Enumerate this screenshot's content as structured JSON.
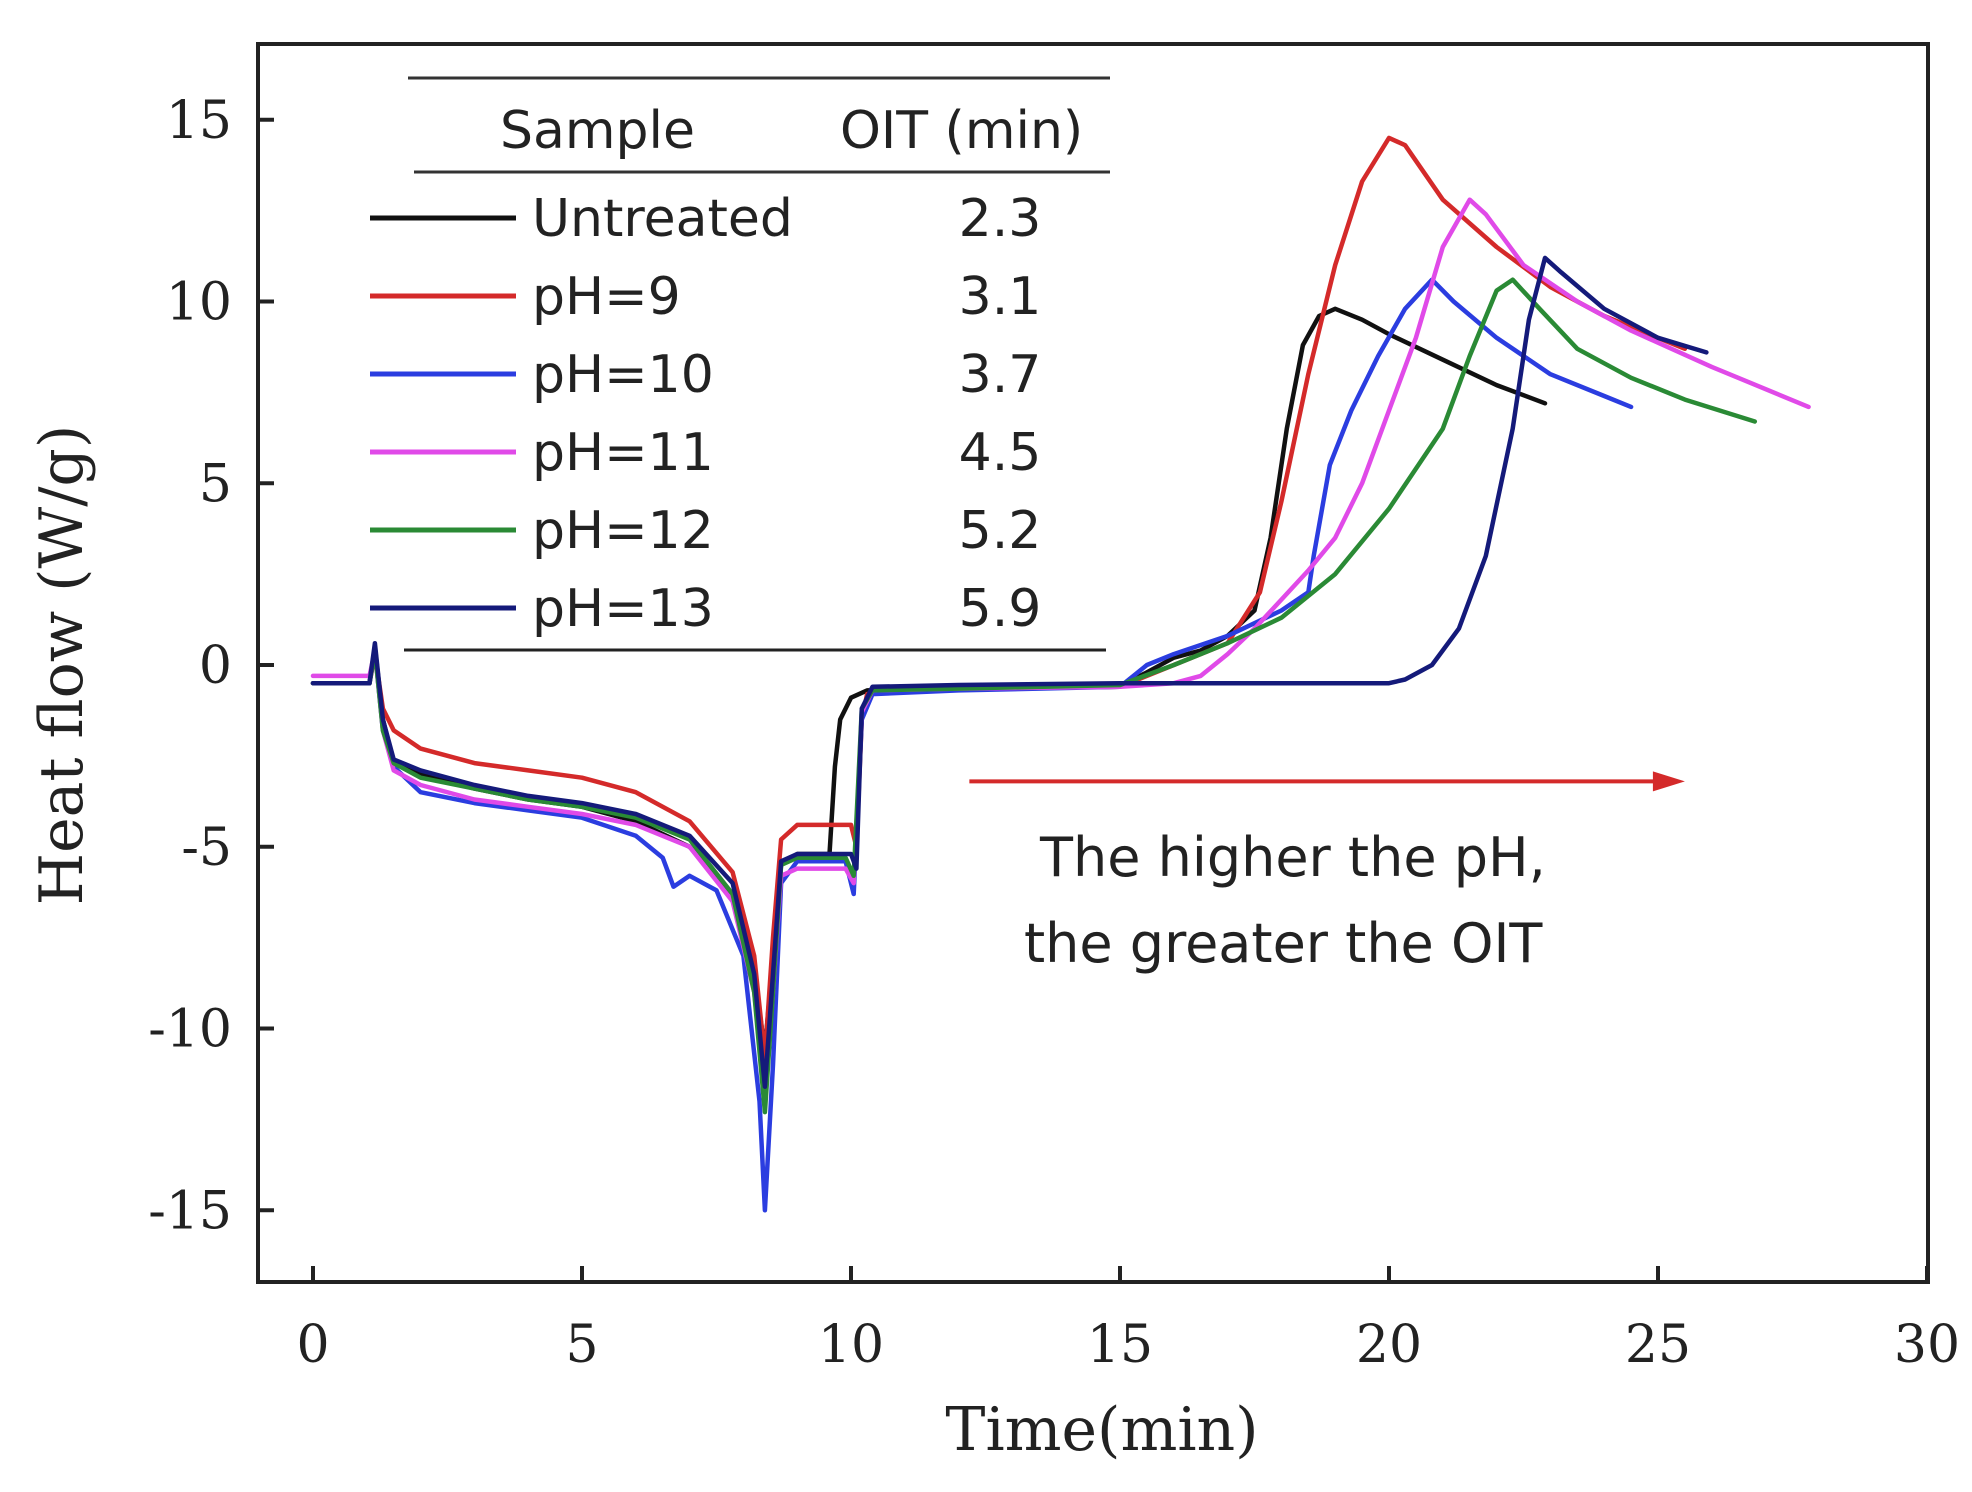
{
  "chart_data": {
    "type": "line",
    "xlabel": "Time(min)",
    "ylabel": "Heat flow (W/g)",
    "xlim": [
      0,
      30
    ],
    "ylim": [
      -17,
      17
    ],
    "x_ticks": [
      "0",
      "5",
      "10",
      "15",
      "20",
      "25",
      "30"
    ],
    "y_ticks": [
      "-15",
      "-10",
      "-5",
      "0",
      "5",
      "10",
      "15"
    ],
    "grid": false,
    "legend": {
      "position": "top-left",
      "header_sample": "Sample",
      "header_oit": "OIT (min)",
      "entries": [
        {
          "label": "Untreated",
          "oit": "2.3",
          "color": "#111111"
        },
        {
          "label": "pH=9",
          "oit": "3.1",
          "color": "#d42a2a"
        },
        {
          "label": "pH=10",
          "oit": "3.7",
          "color": "#2b3de0"
        },
        {
          "label": "pH=11",
          "oit": "4.5",
          "color": "#e04ae8"
        },
        {
          "label": "pH=12",
          "oit": "5.2",
          "color": "#2a8a35"
        },
        {
          "label": "pH=13",
          "oit": "5.9",
          "color": "#141a7a"
        }
      ]
    },
    "annotation": {
      "line1": "The higher the pH,",
      "line2": "the greater the OIT",
      "arrow_from_x": 12.2,
      "arrow_to_x": 25.5,
      "arrow_y": -3.2,
      "arrow_color": "#d42a2a"
    },
    "series": [
      {
        "name": "Untreated",
        "color": "#111111",
        "points": [
          [
            0,
            -0.5
          ],
          [
            1.05,
            -0.5
          ],
          [
            1.15,
            0.5
          ],
          [
            1.3,
            -1.5
          ],
          [
            1.5,
            -2.7
          ],
          [
            2,
            -3.0
          ],
          [
            3,
            -3.4
          ],
          [
            4,
            -3.7
          ],
          [
            5,
            -3.9
          ],
          [
            6,
            -4.3
          ],
          [
            7,
            -5.0
          ],
          [
            7.8,
            -6.3
          ],
          [
            8.2,
            -8.5
          ],
          [
            8.4,
            -10.6
          ],
          [
            8.55,
            -8.0
          ],
          [
            8.7,
            -5.5
          ],
          [
            9.0,
            -5.2
          ],
          [
            9.6,
            -5.2
          ],
          [
            9.7,
            -2.8
          ],
          [
            9.8,
            -1.5
          ],
          [
            10.0,
            -0.9
          ],
          [
            10.3,
            -0.7
          ],
          [
            12,
            -0.65
          ],
          [
            15,
            -0.6
          ],
          [
            15.5,
            -0.2
          ],
          [
            16,
            0.2
          ],
          [
            16.5,
            0.4
          ],
          [
            17,
            0.8
          ],
          [
            17.5,
            1.5
          ],
          [
            17.8,
            3.5
          ],
          [
            18.1,
            6.5
          ],
          [
            18.4,
            8.8
          ],
          [
            18.7,
            9.6
          ],
          [
            19.0,
            9.8
          ],
          [
            19.5,
            9.5
          ],
          [
            20,
            9.1
          ],
          [
            21,
            8.4
          ],
          [
            22,
            7.7
          ],
          [
            22.9,
            7.2
          ]
        ]
      },
      {
        "name": "pH=9",
        "color": "#d42a2a",
        "points": [
          [
            0,
            -0.5
          ],
          [
            1.05,
            -0.5
          ],
          [
            1.15,
            0.3
          ],
          [
            1.3,
            -1.2
          ],
          [
            1.5,
            -1.8
          ],
          [
            2,
            -2.3
          ],
          [
            3,
            -2.7
          ],
          [
            4,
            -2.9
          ],
          [
            5,
            -3.1
          ],
          [
            6,
            -3.5
          ],
          [
            7,
            -4.3
          ],
          [
            7.8,
            -5.7
          ],
          [
            8.2,
            -8.0
          ],
          [
            8.4,
            -10.8
          ],
          [
            8.55,
            -7.5
          ],
          [
            8.7,
            -4.8
          ],
          [
            9.0,
            -4.4
          ],
          [
            10.0,
            -4.4
          ],
          [
            10.1,
            -5.0
          ],
          [
            10.2,
            -1.5
          ],
          [
            10.3,
            -0.8
          ],
          [
            10.6,
            -0.7
          ],
          [
            12,
            -0.65
          ],
          [
            15,
            -0.6
          ],
          [
            16,
            0
          ],
          [
            17,
            0.6
          ],
          [
            17.6,
            2.0
          ],
          [
            18.0,
            4.5
          ],
          [
            18.5,
            8.0
          ],
          [
            19.0,
            11.0
          ],
          [
            19.5,
            13.3
          ],
          [
            20.0,
            14.5
          ],
          [
            20.3,
            14.3
          ],
          [
            21,
            12.8
          ],
          [
            22,
            11.5
          ],
          [
            23,
            10.4
          ],
          [
            24,
            9.6
          ],
          [
            25.5,
            8.7
          ]
        ]
      },
      {
        "name": "pH=10",
        "color": "#2b3de0",
        "points": [
          [
            0,
            -0.5
          ],
          [
            1.05,
            -0.5
          ],
          [
            1.15,
            0.4
          ],
          [
            1.3,
            -1.8
          ],
          [
            1.5,
            -2.8
          ],
          [
            2,
            -3.5
          ],
          [
            3,
            -3.8
          ],
          [
            4,
            -4.0
          ],
          [
            5,
            -4.2
          ],
          [
            6,
            -4.7
          ],
          [
            6.5,
            -5.3
          ],
          [
            6.7,
            -6.1
          ],
          [
            7.0,
            -5.8
          ],
          [
            7.5,
            -6.2
          ],
          [
            8.0,
            -8.0
          ],
          [
            8.3,
            -12.0
          ],
          [
            8.4,
            -15.0
          ],
          [
            8.55,
            -11.0
          ],
          [
            8.7,
            -6.0
          ],
          [
            9.0,
            -5.4
          ],
          [
            9.9,
            -5.4
          ],
          [
            10.05,
            -6.3
          ],
          [
            10.2,
            -1.5
          ],
          [
            10.4,
            -0.8
          ],
          [
            12,
            -0.7
          ],
          [
            15,
            -0.6
          ],
          [
            15.5,
            0.0
          ],
          [
            16,
            0.3
          ],
          [
            17,
            0.8
          ],
          [
            18,
            1.5
          ],
          [
            18.5,
            2.0
          ],
          [
            18.6,
            3.0
          ],
          [
            18.9,
            5.5
          ],
          [
            19.3,
            7.0
          ],
          [
            19.8,
            8.5
          ],
          [
            20.3,
            9.8
          ],
          [
            20.8,
            10.6
          ],
          [
            21.2,
            10.0
          ],
          [
            22,
            9.0
          ],
          [
            23,
            8.0
          ],
          [
            24,
            7.4
          ],
          [
            24.5,
            7.1
          ]
        ]
      },
      {
        "name": "pH=11",
        "color": "#e04ae8",
        "points": [
          [
            0,
            -0.3
          ],
          [
            1.05,
            -0.3
          ],
          [
            1.15,
            0.4
          ],
          [
            1.3,
            -1.8
          ],
          [
            1.5,
            -2.9
          ],
          [
            2,
            -3.3
          ],
          [
            3,
            -3.7
          ],
          [
            4,
            -3.9
          ],
          [
            5,
            -4.1
          ],
          [
            6,
            -4.4
          ],
          [
            7,
            -5.0
          ],
          [
            7.8,
            -6.5
          ],
          [
            8.2,
            -9.0
          ],
          [
            8.4,
            -11.8
          ],
          [
            8.55,
            -9.0
          ],
          [
            8.7,
            -5.8
          ],
          [
            9.0,
            -5.6
          ],
          [
            9.9,
            -5.6
          ],
          [
            10.05,
            -6.0
          ],
          [
            10.2,
            -1.3
          ],
          [
            10.4,
            -0.7
          ],
          [
            12,
            -0.65
          ],
          [
            15,
            -0.6
          ],
          [
            16,
            -0.5
          ],
          [
            16.5,
            -0.3
          ],
          [
            17.0,
            0.3
          ],
          [
            17.5,
            1.0
          ],
          [
            18,
            1.8
          ],
          [
            18.5,
            2.6
          ],
          [
            19,
            3.5
          ],
          [
            19.5,
            5.0
          ],
          [
            20,
            7.0
          ],
          [
            20.5,
            9.0
          ],
          [
            21.0,
            11.5
          ],
          [
            21.5,
            12.8
          ],
          [
            21.8,
            12.4
          ],
          [
            22.5,
            11.0
          ],
          [
            23.5,
            10.0
          ],
          [
            24.5,
            9.2
          ],
          [
            26,
            8.2
          ],
          [
            27.8,
            7.1
          ]
        ]
      },
      {
        "name": "pH=12",
        "color": "#2a8a35",
        "points": [
          [
            0,
            -0.5
          ],
          [
            1.05,
            -0.5
          ],
          [
            1.15,
            0.4
          ],
          [
            1.3,
            -1.8
          ],
          [
            1.5,
            -2.7
          ],
          [
            2,
            -3.1
          ],
          [
            3,
            -3.4
          ],
          [
            4,
            -3.7
          ],
          [
            5,
            -3.9
          ],
          [
            6,
            -4.2
          ],
          [
            7,
            -4.8
          ],
          [
            7.8,
            -6.3
          ],
          [
            8.2,
            -9.0
          ],
          [
            8.4,
            -12.3
          ],
          [
            8.55,
            -9.0
          ],
          [
            8.7,
            -5.5
          ],
          [
            9.0,
            -5.3
          ],
          [
            9.9,
            -5.3
          ],
          [
            10.05,
            -5.8
          ],
          [
            10.2,
            -1.2
          ],
          [
            10.4,
            -0.7
          ],
          [
            12,
            -0.65
          ],
          [
            15,
            -0.55
          ],
          [
            16,
            0
          ],
          [
            17,
            0.6
          ],
          [
            18,
            1.3
          ],
          [
            19,
            2.5
          ],
          [
            20,
            4.3
          ],
          [
            21,
            6.5
          ],
          [
            21.5,
            8.5
          ],
          [
            22.0,
            10.3
          ],
          [
            22.3,
            10.6
          ],
          [
            22.8,
            9.8
          ],
          [
            23.5,
            8.7
          ],
          [
            24.5,
            7.9
          ],
          [
            25.5,
            7.3
          ],
          [
            26.8,
            6.7
          ]
        ]
      },
      {
        "name": "pH=13",
        "color": "#141a7a",
        "points": [
          [
            0,
            -0.5
          ],
          [
            1.05,
            -0.5
          ],
          [
            1.15,
            0.6
          ],
          [
            1.3,
            -1.5
          ],
          [
            1.5,
            -2.6
          ],
          [
            2,
            -2.9
          ],
          [
            3,
            -3.3
          ],
          [
            4,
            -3.6
          ],
          [
            5,
            -3.8
          ],
          [
            6,
            -4.1
          ],
          [
            7,
            -4.7
          ],
          [
            7.8,
            -6.0
          ],
          [
            8.2,
            -8.5
          ],
          [
            8.4,
            -11.6
          ],
          [
            8.55,
            -8.5
          ],
          [
            8.7,
            -5.4
          ],
          [
            9.0,
            -5.2
          ],
          [
            10.0,
            -5.2
          ],
          [
            10.1,
            -5.6
          ],
          [
            10.2,
            -1.2
          ],
          [
            10.4,
            -0.6
          ],
          [
            12,
            -0.55
          ],
          [
            15,
            -0.5
          ],
          [
            20,
            -0.5
          ],
          [
            20.3,
            -0.4
          ],
          [
            20.8,
            0
          ],
          [
            21.3,
            1.0
          ],
          [
            21.8,
            3.0
          ],
          [
            22.3,
            6.5
          ],
          [
            22.6,
            9.5
          ],
          [
            22.9,
            11.2
          ],
          [
            23.2,
            10.8
          ],
          [
            24,
            9.8
          ],
          [
            25,
            9.0
          ],
          [
            25.9,
            8.6
          ]
        ]
      }
    ]
  }
}
